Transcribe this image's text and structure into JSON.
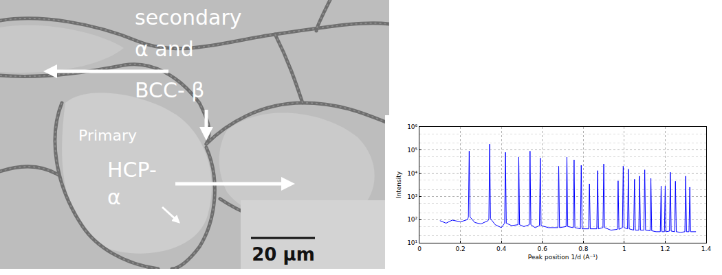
{
  "micrograph": {
    "labels": [
      {
        "lines": [
          "secondary",
          "α and",
          "BCC- β"
        ]
      },
      {
        "lines": [
          "Primary",
          "HCP-",
          "α"
        ]
      }
    ],
    "scale_bar": "20 μm"
  },
  "chart_data": {
    "type": "line",
    "color": "#0000ff",
    "xlabel": "Peak position 1/d (A⁻¹)",
    "ylabel": "Intensity",
    "log": "y",
    "grid": true,
    "xlim": [
      0,
      1.4
    ],
    "xticks": [
      0,
      0.2,
      0.4,
      0.6,
      0.8,
      1,
      1.2,
      1.4
    ],
    "ylim": [
      10,
      1000000
    ],
    "yticks": [
      {
        "value": 10,
        "label": "10¹"
      },
      {
        "value": 100,
        "label": "10²"
      },
      {
        "value": 1000,
        "label": "10³"
      },
      {
        "value": 10000,
        "label": "10⁴"
      },
      {
        "value": 100000,
        "label": "10⁵"
      },
      {
        "value": 1000000,
        "label": "10⁶"
      }
    ],
    "x": [
      0.1,
      0.13,
      0.16,
      0.2,
      0.235,
      0.239,
      0.243,
      0.247,
      0.27,
      0.3,
      0.335,
      0.339,
      0.343,
      0.347,
      0.37,
      0.4,
      0.416,
      0.42,
      0.424,
      0.45,
      0.481,
      0.485,
      0.489,
      0.51,
      0.536,
      0.54,
      0.544,
      0.565,
      0.586,
      0.59,
      0.594,
      0.63,
      0.676,
      0.68,
      0.684,
      0.716,
      0.72,
      0.724,
      0.751,
      0.755,
      0.759,
      0.786,
      0.79,
      0.794,
      0.826,
      0.83,
      0.834,
      0.866,
      0.87,
      0.874,
      0.896,
      0.9,
      0.904,
      0.935,
      0.966,
      0.97,
      0.974,
      0.991,
      0.995,
      0.999,
      1.016,
      1.02,
      1.024,
      1.046,
      1.05,
      1.054,
      1.071,
      1.075,
      1.079,
      1.096,
      1.1,
      1.104,
      1.126,
      1.13,
      1.134,
      1.155,
      1.176,
      1.18,
      1.184,
      1.196,
      1.2,
      1.204,
      1.221,
      1.225,
      1.229,
      1.246,
      1.25,
      1.254,
      1.275,
      1.296,
      1.3,
      1.304,
      1.316,
      1.32,
      1.324,
      1.35
    ],
    "values": [
      90,
      70,
      95,
      80,
      100,
      130,
      90000,
      130,
      75,
      65,
      90,
      110,
      180000,
      110,
      60,
      45,
      70,
      80000,
      70,
      55,
      60,
      50000,
      60,
      50,
      60,
      90000,
      60,
      45,
      55,
      45000,
      55,
      45,
      45,
      20000,
      45,
      50,
      50000,
      50,
      45,
      38000,
      45,
      40,
      22000,
      40,
      40,
      3500,
      40,
      40,
      13000,
      40,
      45,
      25000,
      45,
      35,
      38,
      4700,
      38,
      45,
      20000,
      45,
      40,
      15000,
      40,
      35,
      5500,
      35,
      35,
      7500,
      35,
      35,
      14000,
      35,
      33,
      6000,
      33,
      30,
      30,
      2800,
      30,
      30,
      2800,
      30,
      32,
      11000,
      32,
      30,
      4500,
      30,
      28,
      30,
      7500,
      30,
      30,
      2500,
      30,
      30
    ]
  }
}
